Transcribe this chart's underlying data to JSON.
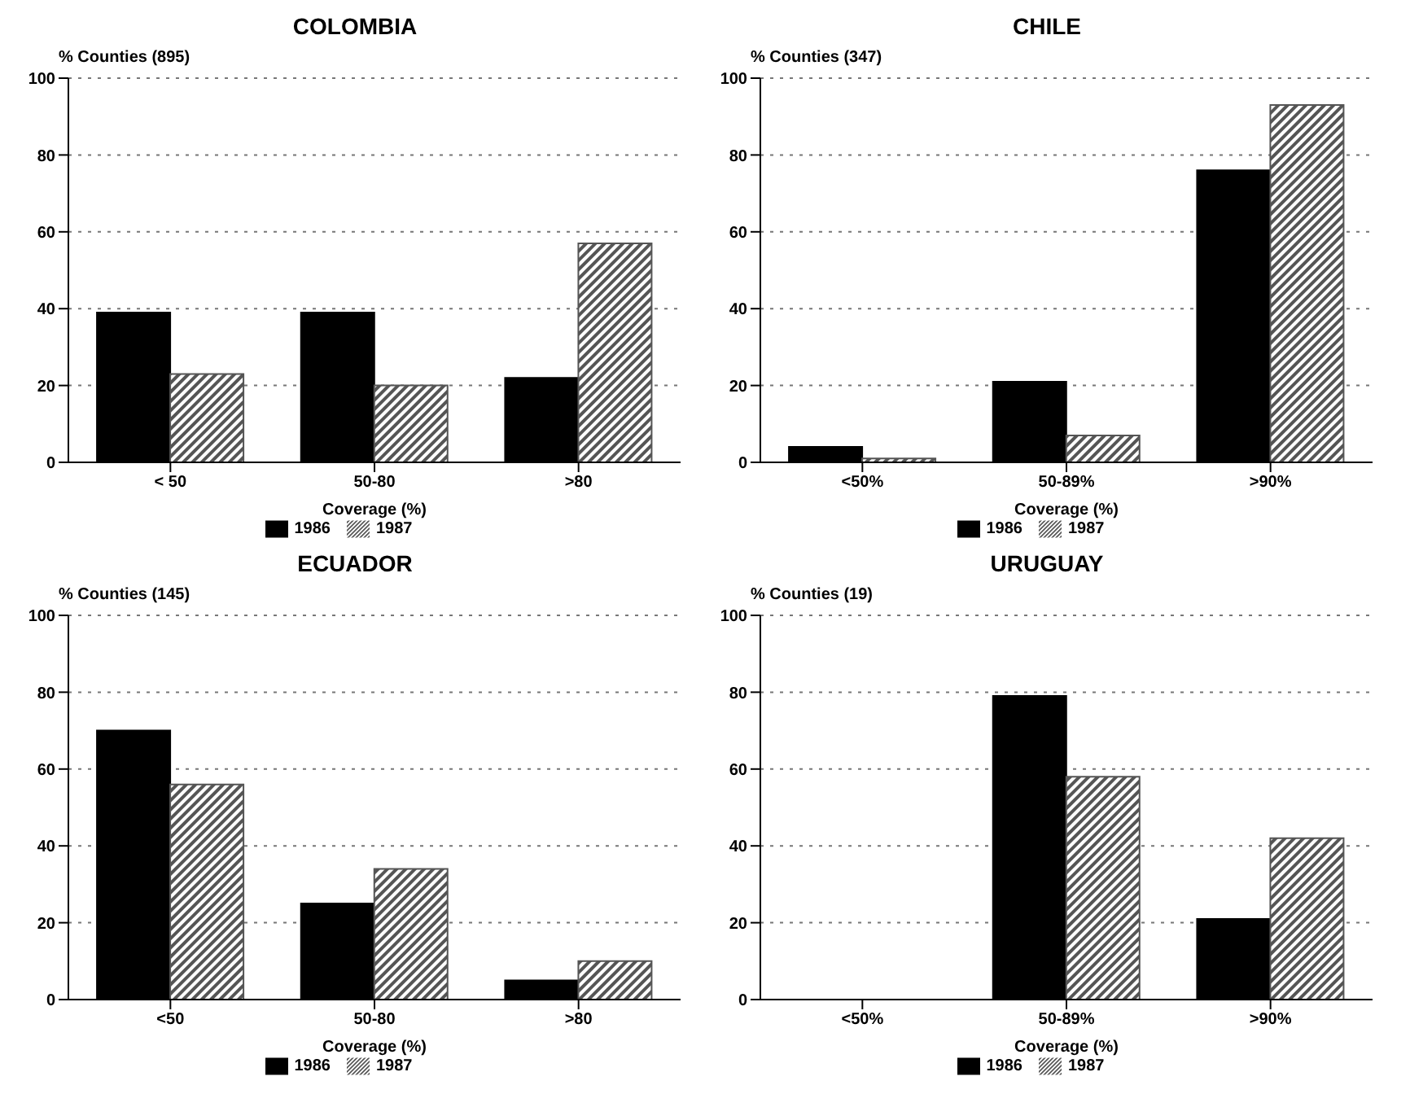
{
  "chart_data": [
    {
      "type": "bar",
      "title": "COLOMBIA",
      "ylabel": "% Counties (895)",
      "xlabel": "Coverage (%)",
      "categories": [
        "< 50",
        "50-80",
        ">80"
      ],
      "series": [
        {
          "name": "1986",
          "color": "#000000",
          "values": [
            39,
            39,
            22
          ]
        },
        {
          "name": "1987",
          "color": "#555555",
          "values": [
            23,
            20,
            57
          ]
        }
      ],
      "ylim": [
        0,
        100
      ],
      "yticks": [
        0,
        20,
        40,
        60,
        80,
        100
      ],
      "grid": "y",
      "legend": "bottom"
    },
    {
      "type": "bar",
      "title": "CHILE",
      "ylabel": "% Counties (347)",
      "xlabel": "Coverage (%)",
      "categories": [
        "<50%",
        "50-89%",
        ">90%"
      ],
      "series": [
        {
          "name": "1986",
          "color": "#000000",
          "values": [
            4,
            21,
            76
          ]
        },
        {
          "name": "1987",
          "color": "#555555",
          "values": [
            1,
            7,
            93
          ]
        }
      ],
      "ylim": [
        0,
        100
      ],
      "yticks": [
        0,
        20,
        40,
        60,
        80,
        100
      ],
      "grid": "y",
      "legend": "bottom"
    },
    {
      "type": "bar",
      "title": "ECUADOR",
      "ylabel": "% Counties (145)",
      "xlabel": "Coverage (%)",
      "categories": [
        "<50",
        "50-80",
        ">80"
      ],
      "series": [
        {
          "name": "1986",
          "color": "#000000",
          "values": [
            70,
            25,
            5
          ]
        },
        {
          "name": "1987",
          "color": "#555555",
          "values": [
            56,
            34,
            10
          ]
        }
      ],
      "ylim": [
        0,
        100
      ],
      "yticks": [
        0,
        20,
        40,
        60,
        80,
        100
      ],
      "grid": "y",
      "legend": "bottom"
    },
    {
      "type": "bar",
      "title": "URUGUAY",
      "ylabel": "% Counties (19)",
      "xlabel": "Coverage (%)",
      "categories": [
        "<50%",
        "50-89%",
        ">90%"
      ],
      "series": [
        {
          "name": "1986",
          "color": "#000000",
          "values": [
            0,
            79,
            21
          ]
        },
        {
          "name": "1987",
          "color": "#555555",
          "values": [
            0,
            58,
            42
          ]
        }
      ],
      "ylim": [
        0,
        100
      ],
      "yticks": [
        0,
        20,
        40,
        60,
        80,
        100
      ],
      "grid": "y",
      "legend": "bottom"
    }
  ]
}
